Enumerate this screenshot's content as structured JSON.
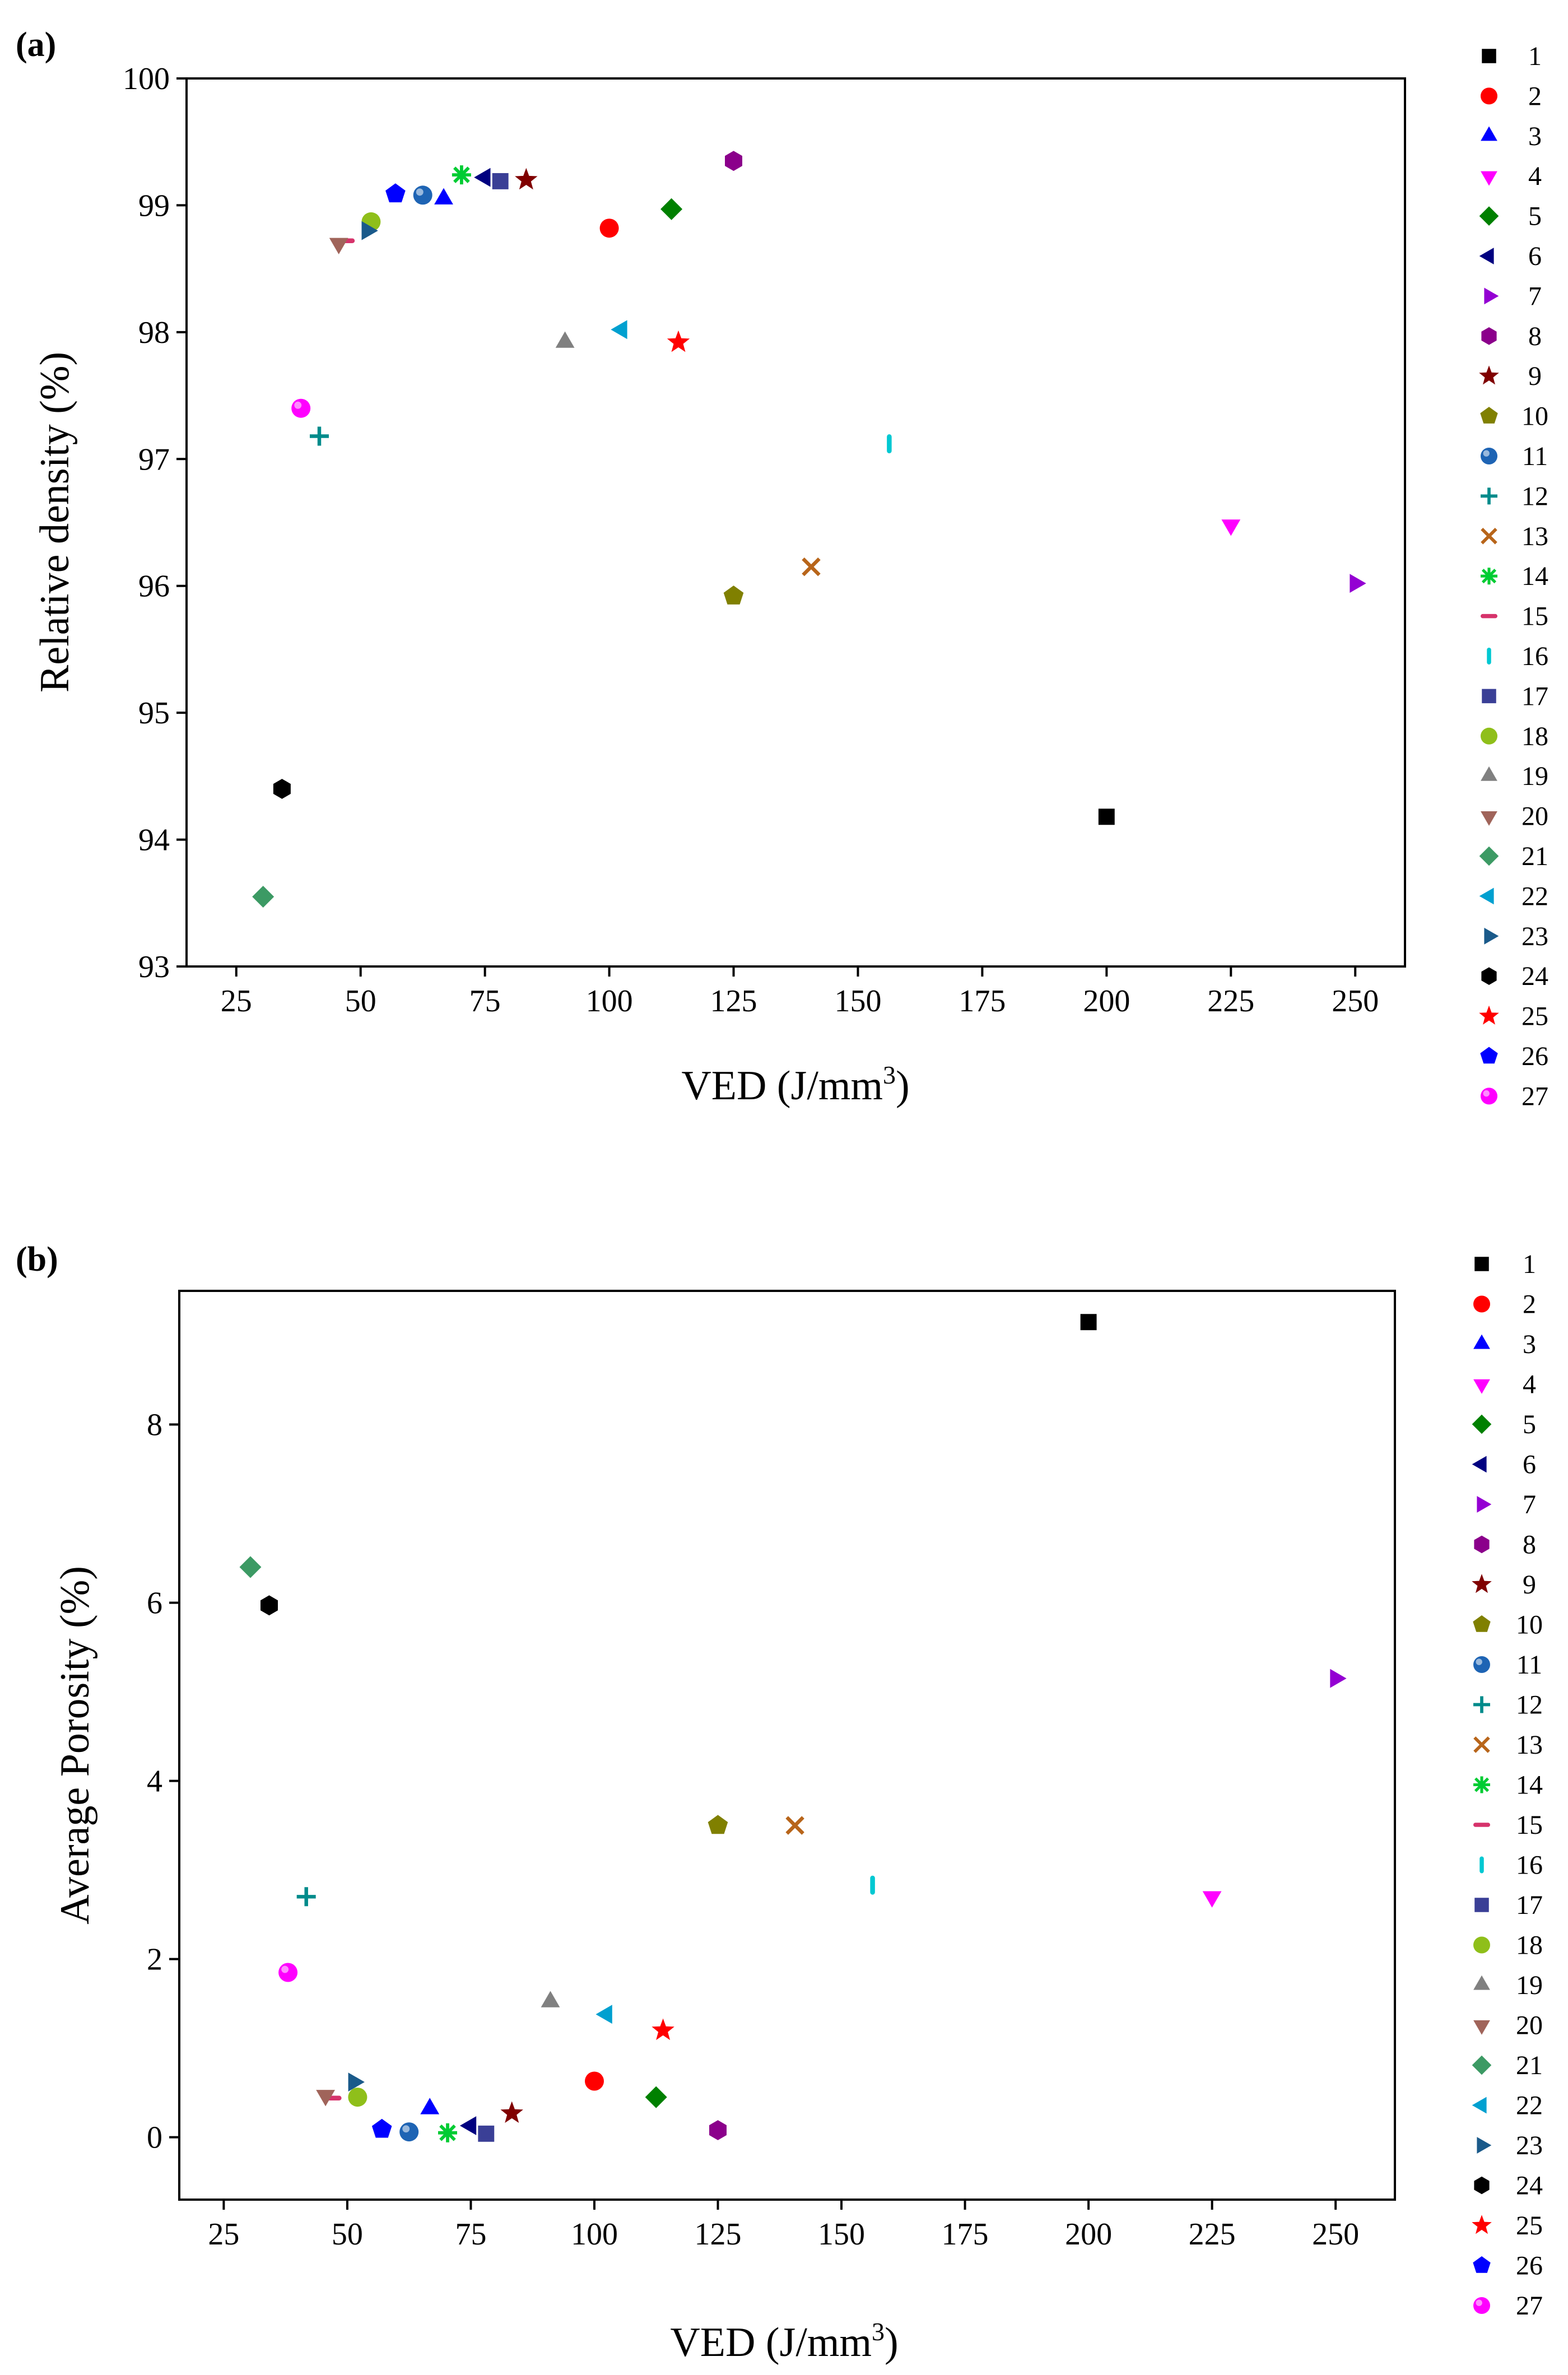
{
  "chart_data": [
    {
      "panel_label": "(a)",
      "type": "scatter",
      "xlabel": "VED (J/mm",
      "xlabel_sup": "3",
      "xlabel_end": ")",
      "ylabel": "Relative density (%)",
      "xlim": [
        15,
        260
      ],
      "ylim": [
        93,
        100
      ],
      "xticks": [
        25,
        50,
        75,
        100,
        125,
        150,
        175,
        200,
        225,
        250
      ],
      "yticks": [
        93,
        94,
        95,
        96,
        97,
        98,
        99,
        100
      ],
      "points": [
        {
          "id": 1,
          "x": 200,
          "y": 94.18
        },
        {
          "id": 2,
          "x": 100,
          "y": 98.82
        },
        {
          "id": 3,
          "x": 66.7,
          "y": 99.05
        },
        {
          "id": 4,
          "x": 225,
          "y": 96.48
        },
        {
          "id": 5,
          "x": 112.5,
          "y": 98.97
        },
        {
          "id": 6,
          "x": 75,
          "y": 99.22
        },
        {
          "id": 7,
          "x": 250,
          "y": 96.02
        },
        {
          "id": 8,
          "x": 125,
          "y": 99.35
        },
        {
          "id": 9,
          "x": 83.3,
          "y": 99.2
        },
        {
          "id": 10,
          "x": 125,
          "y": 95.92
        },
        {
          "id": 11,
          "x": 62.5,
          "y": 99.08
        },
        {
          "id": 12,
          "x": 41.7,
          "y": 97.18
        },
        {
          "id": 13,
          "x": 140.6,
          "y": 96.15
        },
        {
          "id": 14,
          "x": 70.3,
          "y": 99.24
        },
        {
          "id": 15,
          "x": 46.9,
          "y": 98.72
        },
        {
          "id": 16,
          "x": 156.3,
          "y": 97.12
        },
        {
          "id": 17,
          "x": 78.1,
          "y": 99.19
        },
        {
          "id": 18,
          "x": 52.1,
          "y": 98.87
        },
        {
          "id": 19,
          "x": 91.1,
          "y": 97.92
        },
        {
          "id": 20,
          "x": 45.6,
          "y": 98.7
        },
        {
          "id": 21,
          "x": 30.4,
          "y": 93.55
        },
        {
          "id": 22,
          "x": 102.5,
          "y": 98.02
        },
        {
          "id": 23,
          "x": 51.3,
          "y": 98.8
        },
        {
          "id": 24,
          "x": 34.2,
          "y": 94.4
        },
        {
          "id": 25,
          "x": 113.9,
          "y": 97.92
        },
        {
          "id": 26,
          "x": 57,
          "y": 99.09
        },
        {
          "id": 27,
          "x": 38,
          "y": 97.4
        }
      ]
    },
    {
      "panel_label": "(b)",
      "type": "scatter",
      "xlabel": "VED (J/mm",
      "xlabel_sup": "3",
      "xlabel_end": ")",
      "ylabel": "Average Porosity (%)",
      "xlim": [
        16,
        262
      ],
      "ylim": [
        -0.7,
        9.5
      ],
      "xticks": [
        25,
        50,
        75,
        100,
        125,
        150,
        175,
        200,
        225,
        250
      ],
      "yticks": [
        0,
        2,
        4,
        6,
        8
      ],
      "points": [
        {
          "id": 1,
          "x": 200,
          "y": 9.15
        },
        {
          "id": 2,
          "x": 100,
          "y": 0.63
        },
        {
          "id": 3,
          "x": 66.7,
          "y": 0.32
        },
        {
          "id": 4,
          "x": 225,
          "y": 2.7
        },
        {
          "id": 5,
          "x": 112.5,
          "y": 0.45
        },
        {
          "id": 6,
          "x": 75,
          "y": 0.13
        },
        {
          "id": 7,
          "x": 250,
          "y": 5.15
        },
        {
          "id": 8,
          "x": 125,
          "y": 0.08
        },
        {
          "id": 9,
          "x": 83.3,
          "y": 0.27
        },
        {
          "id": 10,
          "x": 125,
          "y": 3.5
        },
        {
          "id": 11,
          "x": 62.5,
          "y": 0.06
        },
        {
          "id": 12,
          "x": 41.7,
          "y": 2.7
        },
        {
          "id": 13,
          "x": 140.6,
          "y": 3.5
        },
        {
          "id": 14,
          "x": 70.3,
          "y": 0.05
        },
        {
          "id": 15,
          "x": 46.9,
          "y": 0.44
        },
        {
          "id": 16,
          "x": 156.3,
          "y": 2.83
        },
        {
          "id": 17,
          "x": 78.1,
          "y": 0.04
        },
        {
          "id": 18,
          "x": 52.1,
          "y": 0.45
        },
        {
          "id": 19,
          "x": 91.1,
          "y": 1.52
        },
        {
          "id": 20,
          "x": 45.6,
          "y": 0.47
        },
        {
          "id": 21,
          "x": 30.4,
          "y": 6.4
        },
        {
          "id": 22,
          "x": 102.5,
          "y": 1.38
        },
        {
          "id": 23,
          "x": 51.3,
          "y": 0.62
        },
        {
          "id": 24,
          "x": 34.2,
          "y": 5.97
        },
        {
          "id": 25,
          "x": 113.9,
          "y": 1.2
        },
        {
          "id": 26,
          "x": 57,
          "y": 0.09
        },
        {
          "id": 27,
          "x": 38,
          "y": 1.85
        }
      ]
    }
  ],
  "series_styles": [
    {
      "id": 1,
      "label": "1",
      "marker": "square",
      "color": "#000000"
    },
    {
      "id": 2,
      "label": "2",
      "marker": "circle",
      "color": "#ff0000"
    },
    {
      "id": 3,
      "label": "3",
      "marker": "triangle-up",
      "color": "#0000ff"
    },
    {
      "id": 4,
      "label": "4",
      "marker": "triangle-down",
      "color": "#ff00ff"
    },
    {
      "id": 5,
      "label": "5",
      "marker": "diamond",
      "color": "#008000"
    },
    {
      "id": 6,
      "label": "6",
      "marker": "triangle-left",
      "color": "#000080"
    },
    {
      "id": 7,
      "label": "7",
      "marker": "triangle-right",
      "color": "#9400d3"
    },
    {
      "id": 8,
      "label": "8",
      "marker": "hexagon",
      "color": "#8b008b"
    },
    {
      "id": 9,
      "label": "9",
      "marker": "star",
      "color": "#800000"
    },
    {
      "id": 10,
      "label": "10",
      "marker": "pentagon",
      "color": "#808000"
    },
    {
      "id": 11,
      "label": "11",
      "marker": "sphere",
      "color": "#1e64b4"
    },
    {
      "id": 12,
      "label": "12",
      "marker": "plus",
      "color": "#008b8b"
    },
    {
      "id": 13,
      "label": "13",
      "marker": "cross",
      "color": "#b8651a"
    },
    {
      "id": 14,
      "label": "14",
      "marker": "asterisk",
      "color": "#00cc33"
    },
    {
      "id": 15,
      "label": "15",
      "marker": "hbar",
      "color": "#d6336b"
    },
    {
      "id": 16,
      "label": "16",
      "marker": "vbar",
      "color": "#00c8d2"
    },
    {
      "id": 17,
      "label": "17",
      "marker": "square",
      "color": "#3a3f96"
    },
    {
      "id": 18,
      "label": "18",
      "marker": "circle",
      "color": "#8fbf1a"
    },
    {
      "id": 19,
      "label": "19",
      "marker": "triangle-up",
      "color": "#808080"
    },
    {
      "id": 20,
      "label": "20",
      "marker": "triangle-down",
      "color": "#a0645a"
    },
    {
      "id": 21,
      "label": "21",
      "marker": "diamond",
      "color": "#3c9a64"
    },
    {
      "id": 22,
      "label": "22",
      "marker": "triangle-left",
      "color": "#00a0d0"
    },
    {
      "id": 23,
      "label": "23",
      "marker": "triangle-right",
      "color": "#1a5a8a"
    },
    {
      "id": 24,
      "label": "24",
      "marker": "hexagon",
      "color": "#000000"
    },
    {
      "id": 25,
      "label": "25",
      "marker": "star",
      "color": "#ff0000"
    },
    {
      "id": 26,
      "label": "26",
      "marker": "pentagon",
      "color": "#0000ff"
    },
    {
      "id": 27,
      "label": "27",
      "marker": "sphere",
      "color": "#ff00ff"
    }
  ]
}
